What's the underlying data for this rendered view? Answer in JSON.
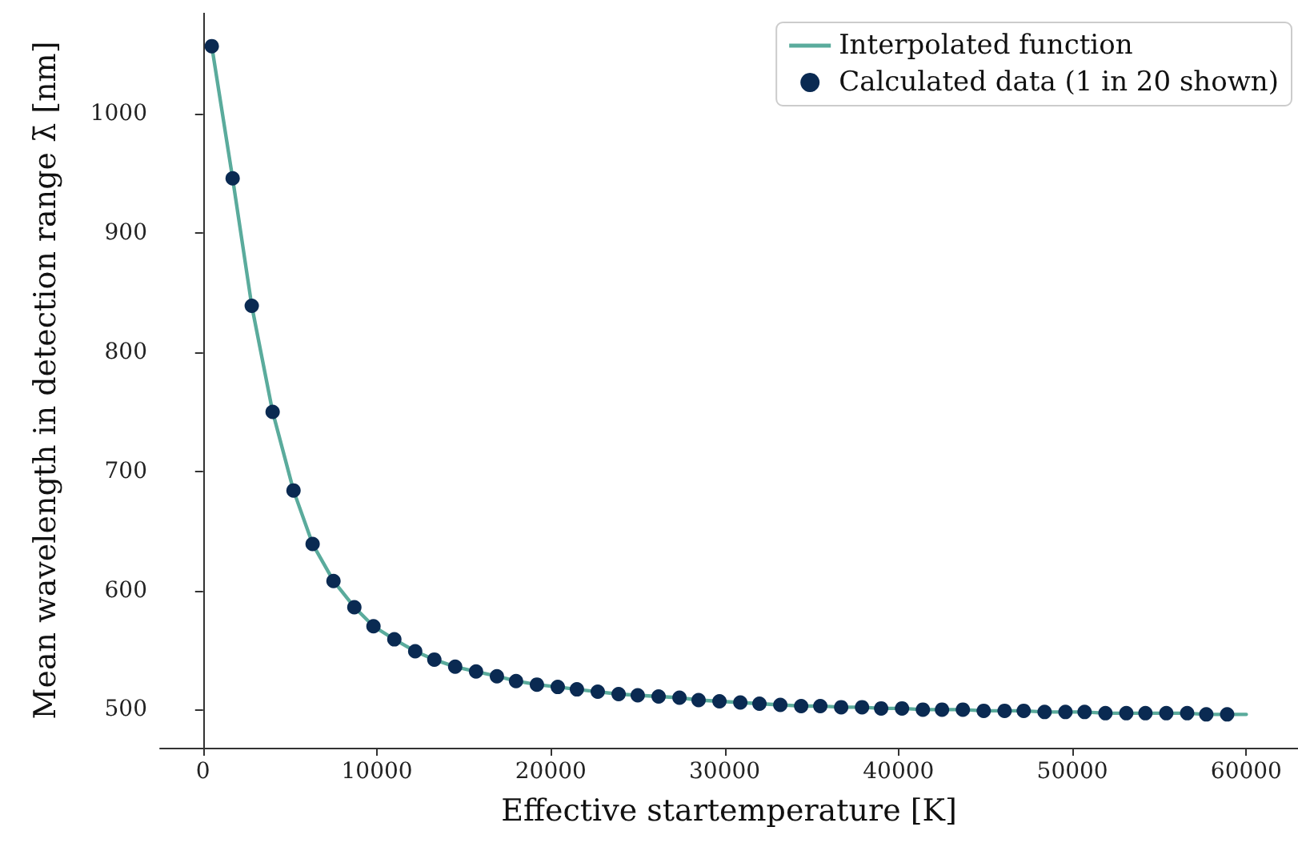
{
  "chart_data": {
    "type": "scatter",
    "xlabel": "Effective startemperature [K]",
    "ylabel": "Mean wavelength in detection range λ̄ [nm]",
    "xlim": [
      -2475,
      62975
    ],
    "ylim": [
      468,
      1085
    ],
    "xticks": [
      0,
      10000,
      20000,
      30000,
      40000,
      50000,
      60000
    ],
    "yticks": [
      500,
      600,
      700,
      800,
      900,
      1000
    ],
    "grid": false,
    "legend": "top right",
    "series": [
      {
        "name": "Interpolated function",
        "type": "line",
        "marker": "none",
        "color": "#5aab9c",
        "x": [
          500,
          1700,
          2800,
          4000,
          5200,
          6300,
          7500,
          8700,
          9800,
          11000,
          12200,
          13300,
          14500,
          15700,
          16900,
          18000,
          19200,
          20400,
          21500,
          22700,
          23900,
          25000,
          26200,
          27400,
          28500,
          29700,
          30900,
          32000,
          33200,
          34400,
          35500,
          36700,
          37900,
          39000,
          40200,
          41400,
          42500,
          43700,
          44900,
          46100,
          47200,
          48400,
          49600,
          50700,
          51900,
          53100,
          54200,
          55400,
          56600,
          57700,
          58900,
          60000
        ],
        "values": [
          1057,
          946,
          839,
          750,
          684,
          639,
          608,
          586,
          570,
          559,
          549,
          542,
          536,
          532,
          528,
          524,
          521,
          519,
          517,
          515,
          513,
          512,
          511,
          510,
          508,
          507,
          506,
          505,
          504,
          503,
          503,
          502,
          502,
          501,
          501,
          500,
          500,
          500,
          499,
          499,
          499,
          498,
          498,
          498,
          497,
          497,
          497,
          497,
          497,
          496,
          496,
          496
        ]
      },
      {
        "name": "Calculated data (1 in 20 shown)",
        "marker": "circle",
        "color": "#0a2a52",
        "x": [
          500,
          1700,
          2800,
          4000,
          5200,
          6300,
          7500,
          8700,
          9800,
          11000,
          12200,
          13300,
          14500,
          15700,
          16900,
          18000,
          19200,
          20400,
          21500,
          22700,
          23900,
          25000,
          26200,
          27400,
          28500,
          29700,
          30900,
          32000,
          33200,
          34400,
          35500,
          36700,
          37900,
          39000,
          40200,
          41400,
          42500,
          43700,
          44900,
          46100,
          47200,
          48400,
          49600,
          50700,
          51900,
          53100,
          54200,
          55400,
          56600,
          57700,
          58900
        ],
        "values": [
          1057,
          946,
          839,
          750,
          684,
          639,
          608,
          586,
          570,
          559,
          549,
          542,
          536,
          532,
          528,
          524,
          521,
          519,
          517,
          515,
          513,
          512,
          511,
          510,
          508,
          507,
          506,
          505,
          504,
          503,
          503,
          502,
          502,
          501,
          501,
          500,
          500,
          500,
          499,
          499,
          499,
          498,
          498,
          498,
          497,
          497,
          497,
          497,
          497,
          496,
          496
        ]
      }
    ]
  }
}
